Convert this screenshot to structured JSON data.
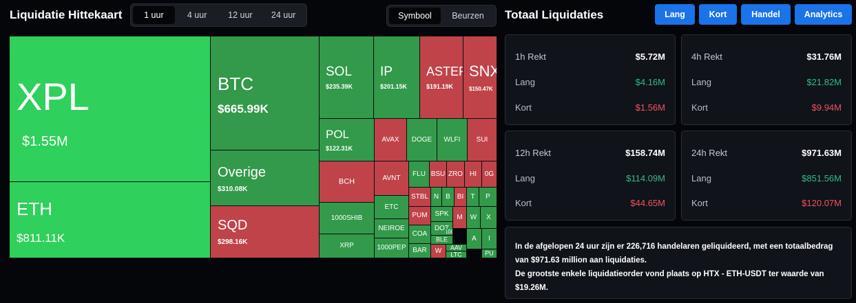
{
  "heatmap": {
    "title": "Liquidatie Hittekaart",
    "time_tabs": [
      "1 uur",
      "4 uur",
      "12 uur",
      "24 uur"
    ],
    "time_active": 0,
    "view_tabs": [
      "Symbool",
      "Beurzen"
    ],
    "view_active": 0,
    "tiles": [
      {
        "name": "xpl",
        "symbol": "XPL",
        "value": "$1.55M",
        "color": "#2fd05b"
      },
      {
        "name": "eth",
        "symbol": "ETH",
        "value": "$811.11K",
        "color": "#2fd05b"
      },
      {
        "name": "btc",
        "symbol": "BTC",
        "value": "$665.99K",
        "color": "#329a4a"
      },
      {
        "name": "overige",
        "symbol": "Overige",
        "value": "$310.08K",
        "color": "#329a4a"
      },
      {
        "name": "sqd",
        "symbol": "SQD",
        "value": "$298.16K",
        "color": "#c0434a"
      },
      {
        "name": "sol",
        "symbol": "SOL",
        "value": "$235.39K",
        "color": "#329a4a"
      },
      {
        "name": "ip",
        "symbol": "IP",
        "value": "$201.15K",
        "color": "#329a4a"
      },
      {
        "name": "aster",
        "symbol": "ASTER",
        "value": "$191.19K",
        "color": "#c0434a"
      },
      {
        "name": "snx",
        "symbol": "SNX",
        "value": "$150.47K",
        "color": "#c0434a"
      },
      {
        "name": "pol",
        "symbol": "POL",
        "value": "$122.31K",
        "color": "#329a4a"
      },
      {
        "name": "avax",
        "symbol": "AVAX",
        "color": "#c0434a"
      },
      {
        "name": "doge",
        "symbol": "DOGE",
        "color": "#329a4a"
      },
      {
        "name": "wlfi",
        "symbol": "WLFI",
        "color": "#329a4a"
      },
      {
        "name": "sui",
        "symbol": "SUI",
        "color": "#c0434a"
      },
      {
        "name": "bch",
        "symbol": "BCH",
        "color": "#c0434a"
      },
      {
        "name": "avnt",
        "symbol": "AVNT",
        "color": "#c0434a"
      },
      {
        "name": "flu",
        "symbol": "FLU",
        "color": "#329a4a"
      },
      {
        "name": "bsu",
        "symbol": "BSU",
        "color": "#c0434a"
      },
      {
        "name": "zro",
        "symbol": "ZRO",
        "color": "#c0434a"
      },
      {
        "name": "hi",
        "symbol": "HI",
        "color": "#c0434a"
      },
      {
        "name": "0g",
        "symbol": "0G",
        "color": "#c0434a"
      },
      {
        "name": "1000shib",
        "symbol": "1000SHIB",
        "color": "#329a4a"
      },
      {
        "name": "etc",
        "symbol": "ETC",
        "color": "#329a4a"
      },
      {
        "name": "stbl",
        "symbol": "STBL",
        "color": "#c0434a"
      },
      {
        "name": "n",
        "symbol": "N",
        "color": "#329a4a"
      },
      {
        "name": "b",
        "symbol": "B",
        "color": "#329a4a"
      },
      {
        "name": "bi",
        "symbol": "BI",
        "color": "#c0434a"
      },
      {
        "name": "t",
        "symbol": "T",
        "color": "#329a4a"
      },
      {
        "name": "p",
        "symbol": "P",
        "color": "#329a4a"
      },
      {
        "name": "pum",
        "symbol": "PUM",
        "color": "#c0434a"
      },
      {
        "name": "spk",
        "symbol": "SPK",
        "color": "#329a4a"
      },
      {
        "name": "m",
        "symbol": "M",
        "color": "#c0434a"
      },
      {
        "name": "w1",
        "symbol": "W",
        "color": "#329a4a"
      },
      {
        "name": "x",
        "symbol": "X",
        "color": "#329a4a"
      },
      {
        "name": "neiroe",
        "symbol": "NEIROE",
        "color": "#329a4a"
      },
      {
        "name": "dot",
        "symbol": "DOT",
        "color": "#329a4a"
      },
      {
        "name": "coa",
        "symbol": "COA",
        "color": "#329a4a"
      },
      {
        "name": "100",
        "symbol": "100",
        "color": "#329a4a"
      },
      {
        "name": "a",
        "symbol": "A",
        "color": "#329a4a"
      },
      {
        "name": "i",
        "symbol": "I",
        "color": "#329a4a"
      },
      {
        "name": "xrp",
        "symbol": "XRP",
        "color": "#329a4a"
      },
      {
        "name": "1000pep",
        "symbol": "1000PEP",
        "color": "#329a4a"
      },
      {
        "name": "ble",
        "symbol": "BLE",
        "color": "#329a4a"
      },
      {
        "name": "aav",
        "symbol": "AAV",
        "color": "#329a4a"
      },
      {
        "name": "bar",
        "symbol": "BAR",
        "color": "#329a4a"
      },
      {
        "name": "w2",
        "symbol": "W",
        "color": "#c0434a"
      },
      {
        "name": "ltc",
        "symbol": "LTC",
        "color": "#329a4a"
      },
      {
        "name": "pu",
        "symbol": "PU",
        "color": "#329a4a"
      }
    ]
  },
  "panel": {
    "title": "Totaal Liquidaties",
    "buttons": [
      "Lang",
      "Kort",
      "Handel",
      "Analytics"
    ],
    "cards": [
      {
        "head": "1h Rekt",
        "total": "$5.72M",
        "long_label": "Lang",
        "long": "$4.16M",
        "short_label": "Kort",
        "short": "$1.56M"
      },
      {
        "head": "4h Rekt",
        "total": "$31.76M",
        "long_label": "Lang",
        "long": "$21.82M",
        "short_label": "Kort",
        "short": "$9.94M"
      },
      {
        "head": "12h Rekt",
        "total": "$158.74M",
        "long_label": "Lang",
        "long": "$114.09M",
        "short_label": "Kort",
        "short": "$44.65M"
      },
      {
        "head": "24h Rekt",
        "total": "$971.63M",
        "long_label": "Lang",
        "long": "$851.56M",
        "short_label": "Kort",
        "short": "$120.07M"
      }
    ],
    "summary": [
      "In de afgelopen 24 uur zijn er 226,716 handelaren geliquideerd, met een totaalbedrag van $971.63 million aan liquidaties.",
      "De grootste enkele liquidatieorder vond plaats op HTX - ETH-USDT ter waarde van $19.26M."
    ]
  }
}
